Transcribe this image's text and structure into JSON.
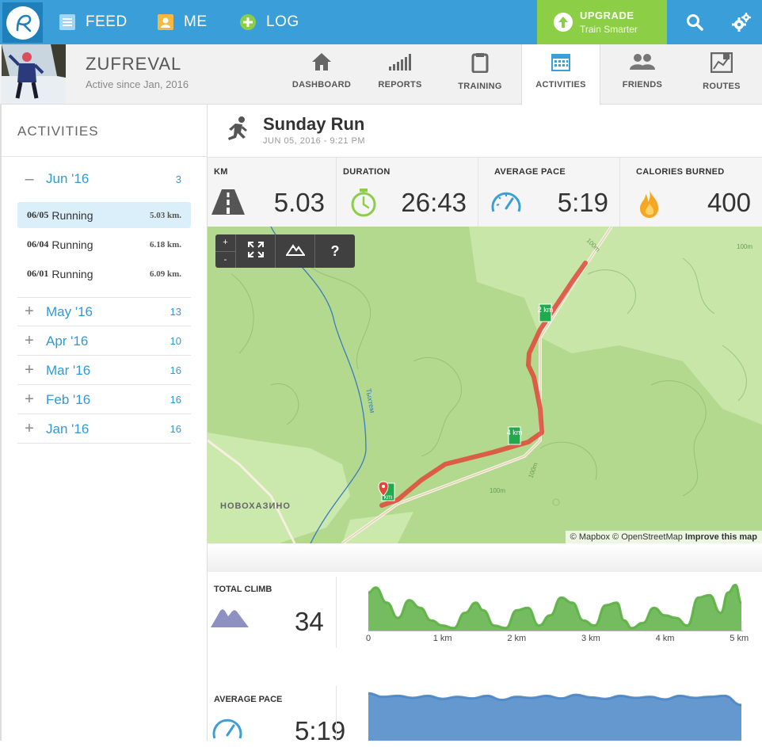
{
  "topbar": {
    "nav": [
      {
        "label": "FEED",
        "icon": "feed-icon"
      },
      {
        "label": "ME",
        "icon": "user-icon"
      },
      {
        "label": "LOG",
        "icon": "plus-icon"
      }
    ],
    "upgrade": {
      "title": "UPGRADE",
      "subtitle": "Train Smarter",
      "icon": "arrow-up-icon"
    },
    "icons": [
      "search-icon",
      "settings-icon"
    ]
  },
  "profile": {
    "username": "ZUFREVAL",
    "since": "Active since Jan, 2016"
  },
  "tabs": [
    {
      "label": "DASHBOARD",
      "icon": "house-icon"
    },
    {
      "label": "REPORTS",
      "icon": "bars-icon"
    },
    {
      "label": "TRAINING",
      "icon": "clipboard-icon"
    },
    {
      "label": "ACTIVITIES",
      "icon": "calendar-icon",
      "active": true
    },
    {
      "label": "FRIENDS",
      "icon": "people-icon"
    },
    {
      "label": "ROUTES",
      "icon": "map-icon"
    }
  ],
  "sidebar": {
    "title": "ACTIVITIES",
    "expanded": {
      "sign": "–",
      "month": "Jun '16",
      "count": "3"
    },
    "activities": [
      {
        "date": "06/05",
        "name": "Running",
        "distance": "5.03 km."
      },
      {
        "date": "06/04",
        "name": "Running",
        "distance": "6.18 km."
      },
      {
        "date": "06/01",
        "name": "Running",
        "distance": "6.09 km."
      }
    ],
    "months": [
      {
        "sign": "+",
        "month": "May '16",
        "count": "13"
      },
      {
        "sign": "+",
        "month": "Apr '16",
        "count": "10"
      },
      {
        "sign": "+",
        "month": "Mar '16",
        "count": "16"
      },
      {
        "sign": "+",
        "month": "Feb '16",
        "count": "16"
      },
      {
        "sign": "+",
        "month": "Jan '16",
        "count": "16"
      }
    ]
  },
  "run": {
    "title": "Sunday Run",
    "date": "JUN 05, 2016  -  9:21 PM"
  },
  "stats": [
    {
      "label": "KM",
      "value": "5.03",
      "icon": "road-icon"
    },
    {
      "label": "DURATION",
      "value": "26:43",
      "icon": "stopwatch-icon"
    },
    {
      "label": "AVERAGE PACE",
      "value": "5:19",
      "icon": "speedometer-icon"
    },
    {
      "label": "CALORIES BURNED",
      "value": "400",
      "icon": "flame-icon"
    }
  ],
  "map": {
    "controls": {
      "zoom_in": "+",
      "zoom_out": "-",
      "help": "?"
    },
    "markers": [
      {
        "label": "2 km"
      },
      {
        "label": "4 km"
      },
      {
        "label": "km"
      }
    ],
    "place": "НОВОХАЗИНО",
    "river": "Тыхтем",
    "contour": "100m",
    "attribution": {
      "mapbox": "© Mapbox",
      "osm": "© OpenStreetMap",
      "improve": "Improve this map"
    }
  },
  "climb": {
    "label": "TOTAL CLIMB",
    "value": "34",
    "icon": "mountain-icon",
    "color": "#5cb043"
  },
  "pace": {
    "label": "AVERAGE PACE",
    "value": "5:19",
    "icon": "speedometer-icon",
    "color": "#4a86c5"
  },
  "chart_data": [
    {
      "type": "area",
      "x_ticks": [
        "0",
        "1 km",
        "2 km",
        "3 km",
        "4 km",
        "5 km"
      ],
      "xlim": [
        0,
        5.03
      ],
      "x": [
        0,
        0.1,
        0.25,
        0.4,
        0.55,
        0.7,
        0.85,
        1.0,
        1.15,
        1.3,
        1.45,
        1.55,
        1.7,
        1.85,
        2.0,
        2.15,
        2.3,
        2.45,
        2.6,
        2.75,
        2.9,
        3.05,
        3.2,
        3.35,
        3.45,
        3.55,
        3.7,
        3.85,
        4.0,
        4.15,
        4.3,
        4.45,
        4.6,
        4.75,
        4.85,
        4.95,
        5.03
      ],
      "y": [
        0.75,
        0.85,
        0.55,
        0.25,
        0.6,
        0.45,
        0.2,
        0.1,
        0.05,
        0.35,
        0.55,
        0.4,
        0.1,
        0.05,
        0.4,
        0.45,
        0.1,
        0.3,
        0.65,
        0.55,
        0.2,
        0.1,
        0.5,
        0.55,
        0.2,
        0.05,
        0.15,
        0.45,
        0.3,
        0.25,
        0.1,
        0.65,
        0.7,
        0.35,
        0.75,
        0.9,
        0.55
      ]
    },
    {
      "type": "area",
      "xlim": [
        0,
        5.03
      ],
      "x": [
        0,
        0.2,
        0.4,
        0.6,
        0.8,
        1.0,
        1.2,
        1.4,
        1.6,
        1.8,
        2.0,
        2.2,
        2.4,
        2.6,
        2.8,
        3.0,
        3.2,
        3.4,
        3.6,
        3.8,
        4.0,
        4.2,
        4.4,
        4.6,
        4.8,
        5.03
      ],
      "y": [
        0.95,
        0.88,
        0.9,
        0.86,
        0.9,
        0.84,
        0.88,
        0.85,
        0.9,
        0.82,
        0.88,
        0.86,
        0.9,
        0.85,
        0.92,
        0.87,
        0.84,
        0.9,
        0.86,
        0.88,
        0.83,
        0.9,
        0.86,
        0.88,
        0.9,
        0.72
      ]
    }
  ]
}
